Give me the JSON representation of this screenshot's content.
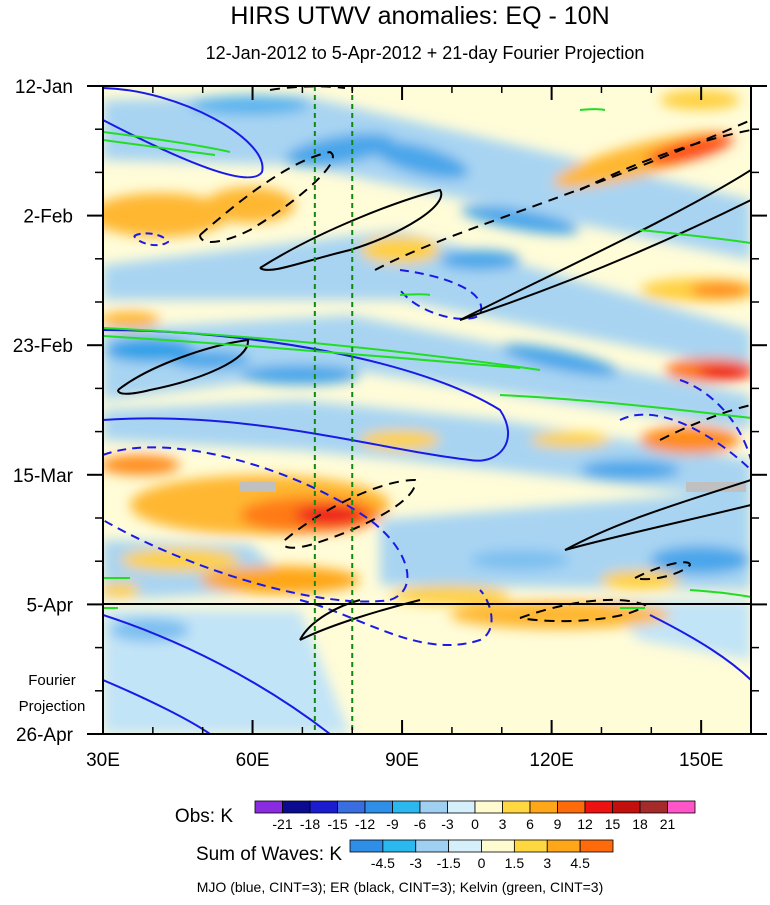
{
  "chart_data": {
    "type": "heatmap",
    "title": "HIRS UTWV anomalies: EQ - 10N",
    "subtitle": "12-Jan-2012 to 5-Apr-2012 + 21-day Fourier Projection",
    "x_ticks": [
      "30E",
      "60E",
      "90E",
      "120E",
      "150E"
    ],
    "x_tick_values": [
      30,
      60,
      90,
      120,
      150
    ],
    "xlim": [
      30,
      160
    ],
    "y_ticks": [
      "12-Jan",
      "2-Feb",
      "23-Feb",
      "15-Mar",
      "5-Apr",
      "26-Apr"
    ],
    "y_tick_days": [
      0,
      21,
      42,
      63,
      84,
      105
    ],
    "ylim_days": [
      0,
      105
    ],
    "projection_label_line1": "Fourier",
    "projection_label_line2": "Projection",
    "projection_start_day": 84,
    "reference_lines_lon": [
      72.5,
      80
    ],
    "obs_colorbar": {
      "label": "Obs: K",
      "levels": [
        "-21",
        "-18",
        "-15",
        "-12",
        "-9",
        "-6",
        "-3",
        "0",
        "3",
        "6",
        "9",
        "12",
        "15",
        "18",
        "21"
      ],
      "colors": [
        "#8a2be2",
        "#0b0b8f",
        "#1c1ccf",
        "#3a6ee0",
        "#2f8fe8",
        "#2ab8ee",
        "#9fd0f2",
        "#d6f0fb",
        "#fffbd0",
        "#ffd740",
        "#ffa619",
        "#ff6a0a",
        "#ee1111",
        "#c40f0f",
        "#a52a2a",
        "#ff55c8"
      ]
    },
    "waves_colorbar": {
      "label": "Sum of Waves: K",
      "levels": [
        "-4.5",
        "-3",
        "-1.5",
        "0",
        "1.5",
        "3",
        "4.5"
      ],
      "colors": [
        "#2f8fe8",
        "#2ab8ee",
        "#9fd0f2",
        "#d6f0fb",
        "#fffbd0",
        "#ffd740",
        "#ffa619",
        "#ff6a0a"
      ]
    },
    "legend_note": "MJO (blue, CINT=3); ER (black, CINT=3); Kelvin (green, CINT=3)",
    "contour_series": [
      {
        "name": "MJO",
        "color": "#1a1ae6",
        "cint": 3
      },
      {
        "name": "ER",
        "color": "#000000",
        "cint": 3
      },
      {
        "name": "Kelvin",
        "color": "#22dd22",
        "cint": 3
      }
    ]
  }
}
